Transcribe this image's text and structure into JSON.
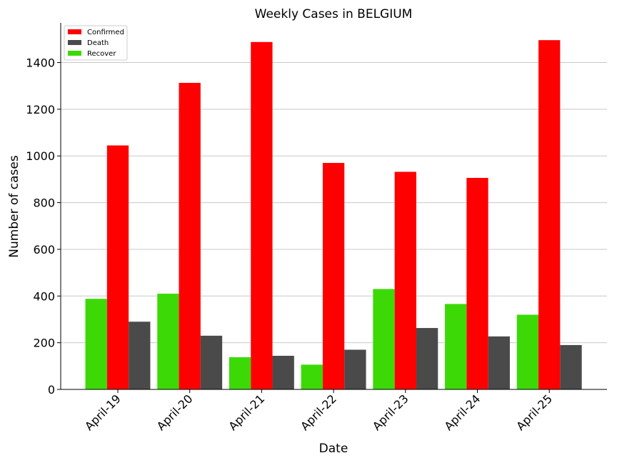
{
  "chart_data": {
    "type": "bar",
    "title": "Weekly Cases in BELGIUM",
    "xlabel": "Date",
    "ylabel": "Number of cases",
    "categories": [
      "April-19",
      "April-20",
      "April-21",
      "April-22",
      "April-23",
      "April-24",
      "April-25"
    ],
    "series": [
      {
        "name": "Recover",
        "color": "#3cd907",
        "values": [
          388,
          410,
          138,
          106,
          430,
          366,
          320
        ]
      },
      {
        "name": "Confirmed",
        "color": "#ff0000",
        "values": [
          1045,
          1313,
          1488,
          970,
          932,
          906,
          1496
        ]
      },
      {
        "name": "Death",
        "color": "#4a4a4a",
        "values": [
          290,
          230,
          144,
          170,
          263,
          227,
          190
        ]
      }
    ],
    "legend_order": [
      "Confirmed",
      "Death",
      "Recover"
    ],
    "ylim": [
      0,
      1570
    ],
    "yticks": [
      0,
      200,
      400,
      600,
      800,
      1000,
      1200,
      1400
    ],
    "grid": "horizontal",
    "legend_position": "top-left"
  }
}
